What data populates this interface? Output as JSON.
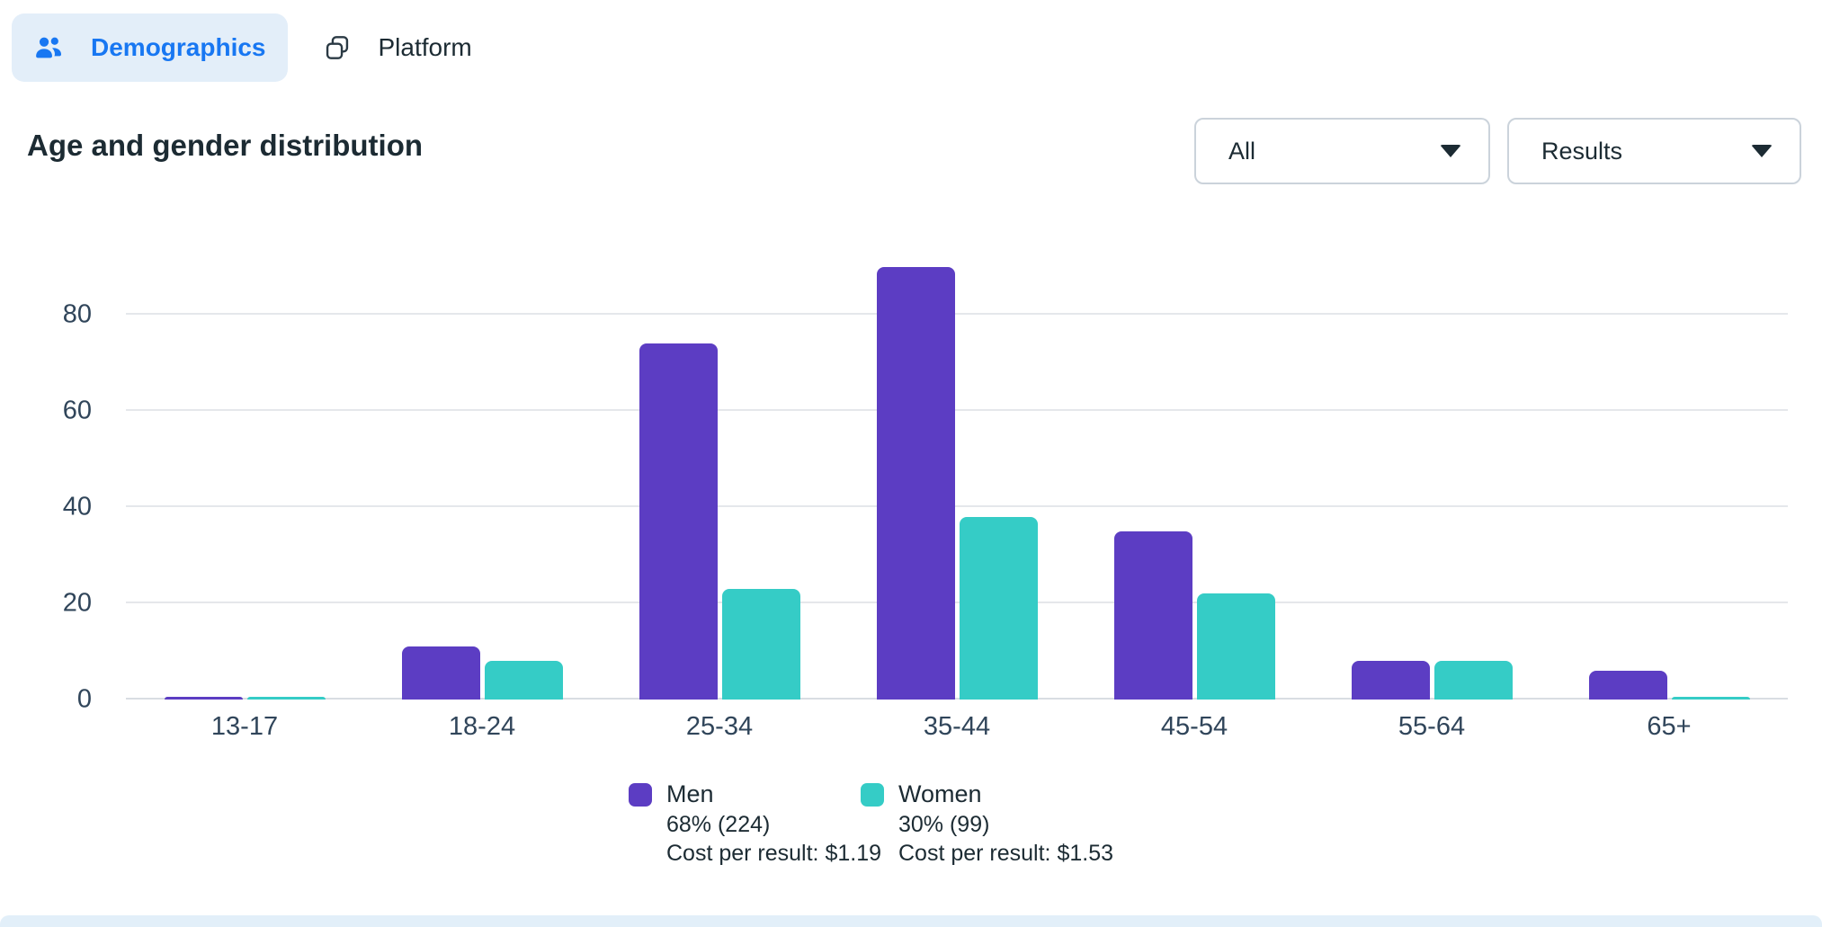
{
  "tabs": [
    {
      "id": "demographics",
      "label": "Demographics",
      "active": true
    },
    {
      "id": "platform",
      "label": "Platform",
      "active": false
    }
  ],
  "header": {
    "title": "Age and gender distribution",
    "filter_dropdown": {
      "value": "All"
    },
    "metric_dropdown": {
      "value": "Results"
    }
  },
  "chart_data": {
    "type": "bar",
    "title": "Age and gender distribution",
    "categories": [
      "13-17",
      "18-24",
      "25-34",
      "35-44",
      "45-54",
      "55-64",
      "65+"
    ],
    "series": [
      {
        "name": "Men",
        "color": "#5C3DC3",
        "values": [
          0,
          11,
          74,
          90,
          35,
          8,
          6
        ],
        "share_label": "68% (224)",
        "cost_label": "Cost per result: $1.19"
      },
      {
        "name": "Women",
        "color": "#35CCC6",
        "values": [
          0,
          8,
          23,
          38,
          22,
          8,
          0
        ],
        "share_label": "30% (99)",
        "cost_label": "Cost per result: $1.53"
      }
    ],
    "y_ticks": [
      0,
      20,
      40,
      60,
      80
    ],
    "ylim": [
      0,
      104
    ],
    "grid": true,
    "legend_position": "bottom",
    "xlabel": "",
    "ylabel": ""
  },
  "colors": {
    "accent_blue": "#1877F2",
    "tab_active_bg": "#E3EEF9",
    "text_dark": "#1C2B33",
    "axis_text": "#30455A",
    "gridline": "#E5E7EB",
    "baseline": "#D9DDE2",
    "dropdown_border": "#CBD3DB",
    "bottom_strip": "#E2EFF9"
  }
}
